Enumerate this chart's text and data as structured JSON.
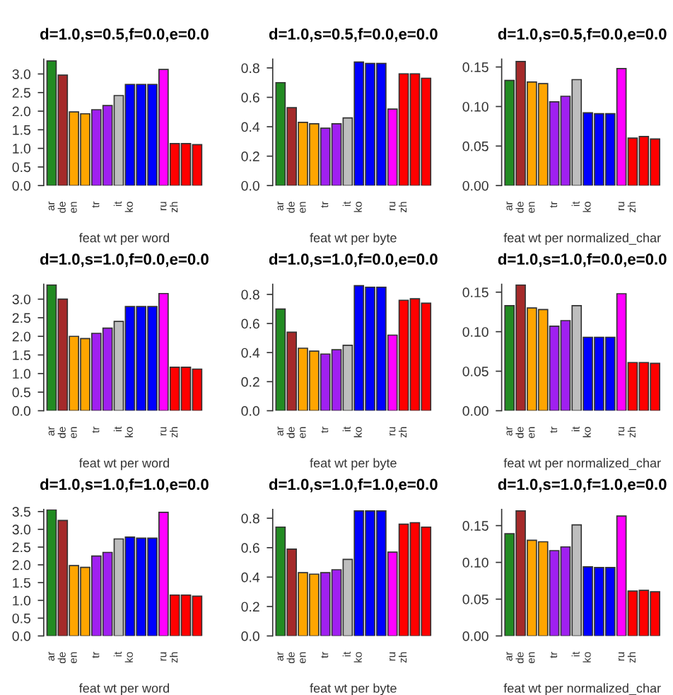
{
  "chart_data": [
    {
      "type": "bar",
      "title": "d=1.0,s=0.5,f=0.0,e=0.0",
      "xlabel": "feat wt per word",
      "categories": [
        "ar",
        "de",
        "en",
        null,
        "tr",
        null,
        "it",
        "ko",
        null,
        null,
        "ru",
        "zh",
        null,
        null
      ],
      "colors": [
        "#228b22",
        "#a52a2a",
        "#ffa500",
        "#ffa500",
        "#a020f0",
        "#a020f0",
        "#bebebe",
        "#0000ff",
        "#0000ff",
        "#0000ff",
        "#ff00ff",
        "#ff0000",
        "#ff0000",
        "#ff0000"
      ],
      "values": [
        3.35,
        2.97,
        1.98,
        1.93,
        2.04,
        2.15,
        2.42,
        2.72,
        2.72,
        2.72,
        3.12,
        1.13,
        1.13,
        1.1
      ],
      "ylim": [
        0,
        3.4
      ],
      "yticks": [
        {
          "value": 0,
          "label": "0.0"
        },
        0.5,
        {
          "value": 1,
          "label": "1.0"
        },
        1.5,
        {
          "value": 2,
          "label": "2.0"
        },
        2.5,
        {
          "value": 3,
          "label": "3.0"
        }
      ]
    },
    {
      "type": "bar",
      "title": "d=1.0,s=0.5,f=0.0,e=0.0",
      "xlabel": "feat wt per byte",
      "categories": [
        "ar",
        "de",
        "en",
        null,
        "tr",
        null,
        "it",
        "ko",
        null,
        null,
        "ru",
        "zh",
        null,
        null
      ],
      "colors": [
        "#228b22",
        "#a52a2a",
        "#ffa500",
        "#ffa500",
        "#a020f0",
        "#a020f0",
        "#bebebe",
        "#0000ff",
        "#0000ff",
        "#0000ff",
        "#ff00ff",
        "#ff0000",
        "#ff0000",
        "#ff0000"
      ],
      "values": [
        0.7,
        0.53,
        0.43,
        0.42,
        0.39,
        0.42,
        0.46,
        0.84,
        0.83,
        0.83,
        0.52,
        0.76,
        0.76,
        0.73
      ],
      "ylim": [
        0,
        0.86
      ],
      "yticks": [
        {
          "value": 0,
          "label": "0.0"
        },
        0.2,
        0.4,
        0.6,
        0.8
      ]
    },
    {
      "type": "bar",
      "title": "d=1.0,s=0.5,f=0.0,e=0.0",
      "xlabel": "feat wt per normalized_char",
      "categories": [
        "ar",
        "de",
        "en",
        null,
        "tr",
        null,
        "it",
        "ko",
        null,
        null,
        "ru",
        "zh",
        null,
        null
      ],
      "colors": [
        "#228b22",
        "#a52a2a",
        "#ffa500",
        "#ffa500",
        "#a020f0",
        "#a020f0",
        "#bebebe",
        "#0000ff",
        "#0000ff",
        "#0000ff",
        "#ff00ff",
        "#ff0000",
        "#ff0000",
        "#ff0000"
      ],
      "values": [
        0.133,
        0.157,
        0.131,
        0.129,
        0.106,
        0.113,
        0.134,
        0.092,
        0.091,
        0.091,
        0.148,
        0.06,
        0.062,
        0.059
      ],
      "ylim": [
        0,
        0.16
      ],
      "yticks": [
        {
          "value": 0,
          "label": "0.00"
        },
        0.05,
        {
          "value": 0.1,
          "label": "0.10"
        },
        0.15
      ]
    },
    {
      "type": "bar",
      "title": "d=1.0,s=1.0,f=0.0,e=0.0",
      "xlabel": "feat wt per word",
      "categories": [
        "ar",
        "de",
        "en",
        null,
        "tr",
        null,
        "it",
        "ko",
        null,
        null,
        "ru",
        "zh",
        null,
        null
      ],
      "colors": [
        "#228b22",
        "#a52a2a",
        "#ffa500",
        "#ffa500",
        "#a020f0",
        "#a020f0",
        "#bebebe",
        "#0000ff",
        "#0000ff",
        "#0000ff",
        "#ff00ff",
        "#ff0000",
        "#ff0000",
        "#ff0000"
      ],
      "values": [
        3.38,
        3.0,
        2.0,
        1.94,
        2.08,
        2.22,
        2.4,
        2.8,
        2.8,
        2.8,
        3.15,
        1.17,
        1.17,
        1.12
      ],
      "ylim": [
        0,
        3.4
      ],
      "yticks": [
        {
          "value": 0,
          "label": "0.0"
        },
        0.5,
        {
          "value": 1,
          "label": "1.0"
        },
        1.5,
        {
          "value": 2,
          "label": "2.0"
        },
        2.5,
        {
          "value": 3,
          "label": "3.0"
        }
      ]
    },
    {
      "type": "bar",
      "title": "d=1.0,s=1.0,f=0.0,e=0.0",
      "xlabel": "feat wt per byte",
      "categories": [
        "ar",
        "de",
        "en",
        null,
        "tr",
        null,
        "it",
        "ko",
        null,
        null,
        "ru",
        "zh",
        null,
        null
      ],
      "colors": [
        "#228b22",
        "#a52a2a",
        "#ffa500",
        "#ffa500",
        "#a020f0",
        "#a020f0",
        "#bebebe",
        "#0000ff",
        "#0000ff",
        "#0000ff",
        "#ff00ff",
        "#ff0000",
        "#ff0000",
        "#ff0000"
      ],
      "values": [
        0.7,
        0.54,
        0.43,
        0.41,
        0.39,
        0.42,
        0.45,
        0.86,
        0.85,
        0.85,
        0.52,
        0.76,
        0.77,
        0.74
      ],
      "ylim": [
        0,
        0.87
      ],
      "yticks": [
        {
          "value": 0,
          "label": "0.0"
        },
        0.2,
        0.4,
        0.6,
        0.8
      ]
    },
    {
      "type": "bar",
      "title": "d=1.0,s=1.0,f=0.0,e=0.0",
      "xlabel": "feat wt per normalized_char",
      "categories": [
        "ar",
        "de",
        "en",
        null,
        "tr",
        null,
        "it",
        "ko",
        null,
        null,
        "ru",
        "zh",
        null,
        null
      ],
      "colors": [
        "#228b22",
        "#a52a2a",
        "#ffa500",
        "#ffa500",
        "#a020f0",
        "#a020f0",
        "#bebebe",
        "#0000ff",
        "#0000ff",
        "#0000ff",
        "#ff00ff",
        "#ff0000",
        "#ff0000",
        "#ff0000"
      ],
      "values": [
        0.133,
        0.159,
        0.13,
        0.128,
        0.107,
        0.114,
        0.133,
        0.093,
        0.093,
        0.093,
        0.148,
        0.061,
        0.061,
        0.06
      ],
      "ylim": [
        0,
        0.16
      ],
      "yticks": [
        {
          "value": 0,
          "label": "0.00"
        },
        0.05,
        {
          "value": 0.1,
          "label": "0.10"
        },
        0.15
      ]
    },
    {
      "type": "bar",
      "title": "d=1.0,s=1.0,f=1.0,e=0.0",
      "xlabel": "feat wt per word",
      "categories": [
        "ar",
        "de",
        "en",
        null,
        "tr",
        null,
        "it",
        "ko",
        null,
        null,
        "ru",
        "zh",
        null,
        null
      ],
      "colors": [
        "#228b22",
        "#a52a2a",
        "#ffa500",
        "#ffa500",
        "#a020f0",
        "#a020f0",
        "#bebebe",
        "#0000ff",
        "#0000ff",
        "#0000ff",
        "#ff00ff",
        "#ff0000",
        "#ff0000",
        "#ff0000"
      ],
      "values": [
        3.55,
        3.25,
        1.98,
        1.93,
        2.25,
        2.35,
        2.73,
        2.78,
        2.75,
        2.75,
        3.48,
        1.15,
        1.15,
        1.12
      ],
      "ylim": [
        0,
        3.56
      ],
      "yticks": [
        {
          "value": 0,
          "label": "0.0"
        },
        0.5,
        {
          "value": 1,
          "label": "1.0"
        },
        1.5,
        {
          "value": 2,
          "label": "2.0"
        },
        2.5,
        {
          "value": 3,
          "label": "3.0"
        },
        3.5
      ]
    },
    {
      "type": "bar",
      "title": "d=1.0,s=1.0,f=1.0,e=0.0",
      "xlabel": "feat wt per byte",
      "categories": [
        "ar",
        "de",
        "en",
        null,
        "tr",
        null,
        "it",
        "ko",
        null,
        null,
        "ru",
        "zh",
        null,
        null
      ],
      "colors": [
        "#228b22",
        "#a52a2a",
        "#ffa500",
        "#ffa500",
        "#a020f0",
        "#a020f0",
        "#bebebe",
        "#0000ff",
        "#0000ff",
        "#0000ff",
        "#ff00ff",
        "#ff0000",
        "#ff0000",
        "#ff0000"
      ],
      "values": [
        0.74,
        0.59,
        0.43,
        0.42,
        0.43,
        0.45,
        0.52,
        0.85,
        0.85,
        0.85,
        0.57,
        0.76,
        0.77,
        0.74
      ],
      "ylim": [
        0,
        0.86
      ],
      "yticks": [
        {
          "value": 0,
          "label": "0.0"
        },
        0.2,
        0.4,
        0.6,
        0.8
      ]
    },
    {
      "type": "bar",
      "title": "d=1.0,s=1.0,f=1.0,e=0.0",
      "xlabel": "feat wt per normalized_char",
      "categories": [
        "ar",
        "de",
        "en",
        null,
        "tr",
        null,
        "it",
        "ko",
        null,
        null,
        "ru",
        "zh",
        null,
        null
      ],
      "colors": [
        "#228b22",
        "#a52a2a",
        "#ffa500",
        "#ffa500",
        "#a020f0",
        "#a020f0",
        "#bebebe",
        "#0000ff",
        "#0000ff",
        "#0000ff",
        "#ff00ff",
        "#ff0000",
        "#ff0000",
        "#ff0000"
      ],
      "values": [
        0.139,
        0.17,
        0.13,
        0.128,
        0.116,
        0.121,
        0.151,
        0.094,
        0.093,
        0.093,
        0.163,
        0.061,
        0.062,
        0.06
      ],
      "ylim": [
        0,
        0.172
      ],
      "yticks": [
        {
          "value": 0,
          "label": "0.00"
        },
        0.05,
        {
          "value": 0.1,
          "label": "0.10"
        },
        0.15
      ]
    }
  ]
}
